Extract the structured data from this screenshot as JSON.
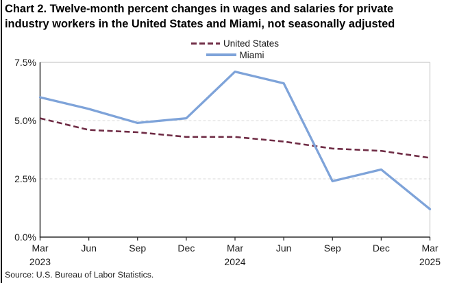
{
  "page": {
    "title_lines": [
      "Chart 2. Twelve-month percent changes in wages and salaries for private",
      "industry workers in the United States and Miami, not seasonally adjusted"
    ],
    "source": "Source: U.S. Bureau of Labor Statistics."
  },
  "legend": {
    "items": [
      {
        "label": "United States",
        "color": "#6f2c45",
        "style": "dashed"
      },
      {
        "label": "Miami",
        "color": "#7ea3d9",
        "style": "solid"
      }
    ]
  },
  "chart_data": {
    "type": "line",
    "title": "Chart 2. Twelve-month percent changes in wages and salaries for private industry workers in the United States and Miami, not seasonally adjusted",
    "x": [
      "Mar 2023",
      "Jun 2023",
      "Sep 2023",
      "Dec 2023",
      "Mar 2024",
      "Jun 2024",
      "Sep 2024",
      "Dec 2024",
      "Mar 2025"
    ],
    "x_tick_labels": [
      [
        "Mar",
        "2023"
      ],
      [
        "Jun"
      ],
      [
        "Sep"
      ],
      [
        "Dec"
      ],
      [
        "Mar",
        "2024"
      ],
      [
        "Jun"
      ],
      [
        "Sep"
      ],
      [
        "Dec"
      ],
      [
        "Mar",
        "2025"
      ]
    ],
    "y_ticks": [
      {
        "label": "7.5%",
        "value": 7.5
      },
      {
        "label": "5.0%",
        "value": 5.0
      },
      {
        "label": "2.5%",
        "value": 2.5
      },
      {
        "label": "0.0%",
        "value": 0.0
      }
    ],
    "ylim": [
      0,
      7.5
    ],
    "grid_values": [
      2.5,
      5.0
    ],
    "grid": "dashed-horizontal",
    "legend_position": "top-center",
    "series": [
      {
        "name": "United States",
        "color": "#6f2c45",
        "dash": true,
        "values": [
          5.1,
          4.6,
          4.5,
          4.3,
          4.3,
          4.1,
          3.8,
          3.7,
          3.4
        ]
      },
      {
        "name": "Miami",
        "color": "#7ea3d9",
        "dash": false,
        "values": [
          6.0,
          5.5,
          4.9,
          5.1,
          7.1,
          6.6,
          2.4,
          2.9,
          1.2
        ]
      }
    ],
    "colors": {
      "axis": "#2b2b2b",
      "plot_border": "#c9c9c9",
      "gridline": "#d9d9d9",
      "text": "#1a1a1a"
    }
  }
}
